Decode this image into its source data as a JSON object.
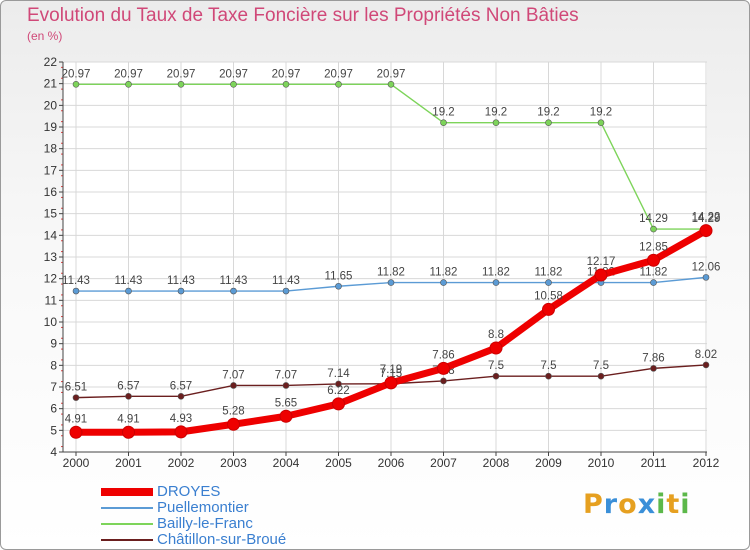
{
  "chart_data": {
    "type": "line",
    "title": "Evolution du Taux de Taxe Foncière sur les Propriétés Non Bâties",
    "subtitle": "(en %)",
    "categories": [
      "2000",
      "2001",
      "2002",
      "2003",
      "2004",
      "2005",
      "2006",
      "2007",
      "2008",
      "2009",
      "2010",
      "2011",
      "2012"
    ],
    "yticks": [
      "4",
      "5",
      "6",
      "7",
      "8",
      "9",
      "10",
      "11",
      "12",
      "13",
      "14",
      "15",
      "16",
      "17",
      "18",
      "19",
      "20",
      "21",
      "22"
    ],
    "ylim": [
      4,
      22
    ],
    "series": [
      {
        "name": "DROYES",
        "color": "#ee0000",
        "values": [
          4.91,
          4.91,
          4.93,
          5.28,
          5.65,
          6.22,
          7.19,
          7.86,
          8.8,
          10.58,
          12.17,
          12.85,
          14.22
        ],
        "labels": [
          "4.91",
          "4.91",
          "4.93",
          "5.28",
          "5.65",
          "6.22",
          "7.19",
          "7.86",
          "8.8",
          "10.58",
          "12.17",
          "12.85",
          "14.22"
        ]
      },
      {
        "name": "Puellemontier",
        "color": "#5b9bd5",
        "values": [
          11.43,
          11.43,
          11.43,
          11.43,
          11.43,
          11.65,
          11.82,
          11.82,
          11.82,
          11.82,
          11.82,
          11.82,
          12.06
        ],
        "labels": [
          "11.43",
          "11.43",
          "11.43",
          "11.43",
          "11.43",
          "11.65",
          "11.82",
          "11.82",
          "11.82",
          "11.82",
          "11.82",
          "11.82",
          "12.06"
        ]
      },
      {
        "name": "Bailly-le-Franc",
        "color": "#7dd45a",
        "values": [
          20.97,
          20.97,
          20.97,
          20.97,
          20.97,
          20.97,
          20.97,
          19.2,
          19.2,
          19.2,
          19.2,
          14.29,
          14.29
        ],
        "labels": [
          "20.97",
          "20.97",
          "20.97",
          "20.97",
          "20.97",
          "20.97",
          "20.97",
          "19.2",
          "19.2",
          "19.2",
          "19.2",
          "14.29",
          "14.29"
        ]
      },
      {
        "name": "Châtillon-sur-Broué",
        "color": "#6b1f1f",
        "values": [
          6.51,
          6.57,
          6.57,
          7.07,
          7.07,
          7.14,
          7.15,
          7.28,
          7.5,
          7.5,
          7.5,
          7.86,
          8.02
        ],
        "labels": [
          "6.51",
          "6.57",
          "6.57",
          "7.07",
          "7.07",
          "7.14",
          "7.15",
          "7.28",
          "7.5",
          "7.5",
          "7.5",
          "7.86",
          "8.02"
        ]
      }
    ]
  },
  "logo": {
    "letters": [
      "P",
      "r",
      "o",
      "x",
      "i",
      "t",
      "i"
    ],
    "colors": [
      "#e6a020",
      "#3a8fd8",
      "#e6a020",
      "#3a8fd8",
      "#5cb84a",
      "#e6a020",
      "#5cb84a"
    ]
  }
}
